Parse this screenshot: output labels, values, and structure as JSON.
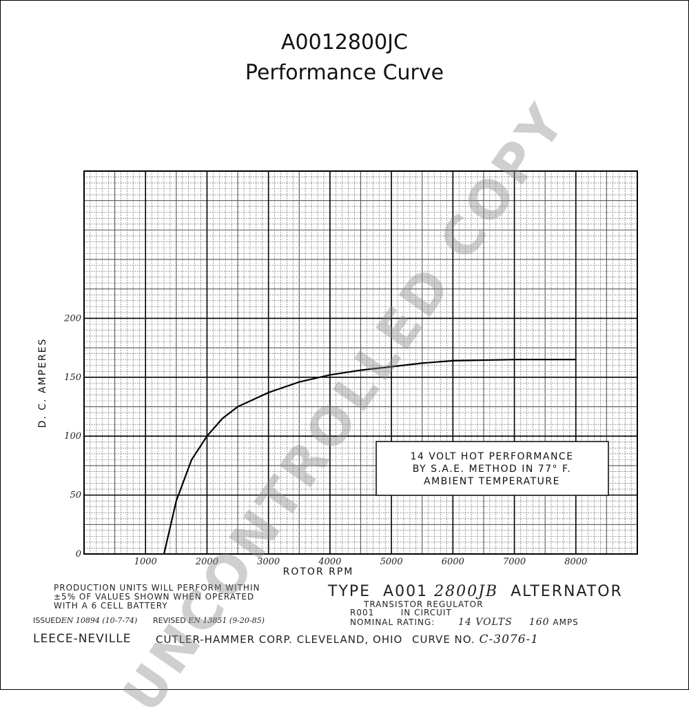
{
  "header": {
    "part_number": "A0012800JC",
    "subtitle": "Performance Curve"
  },
  "chart_data": {
    "type": "line",
    "xlabel": "ROTOR RPM",
    "ylabel": "D. C. AMPERES",
    "xlim": [
      0,
      9000
    ],
    "ylim": [
      0,
      325
    ],
    "x_ticks": [
      "1000",
      "2000",
      "3000",
      "4000",
      "5000",
      "6000",
      "7000",
      "8000"
    ],
    "x_tick_values": [
      1000,
      2000,
      3000,
      4000,
      5000,
      6000,
      7000,
      8000
    ],
    "y_ticks": [
      "0",
      "50",
      "100",
      "150",
      "200"
    ],
    "y_tick_values": [
      0,
      50,
      100,
      150,
      200
    ],
    "grid": true,
    "series": [
      {
        "x": [
          1300,
          1500,
          1750,
          2000,
          2250,
          2500,
          3000,
          3500,
          4000,
          4500,
          5000,
          5500,
          6000,
          7000,
          8000
        ],
        "y": [
          0,
          45,
          80,
          100,
          115,
          125,
          137,
          146,
          152,
          156,
          159,
          162,
          164,
          165,
          165
        ]
      }
    ],
    "annotation": {
      "lines": [
        "14 VOLT HOT PERFORMANCE",
        "BY S.A.E. METHOD IN 77° F.",
        "AMBIENT TEMPERATURE"
      ]
    }
  },
  "footer": {
    "left_note_lines": [
      "PRODUCTION UNITS WILL PERFORM WITHIN",
      "±5% OF VALUES SHOWN WHEN OPERATED",
      "WITH A 6 CELL BATTERY"
    ],
    "issued_label": "ISSUED",
    "issued_value": "EN 10894 (10-7-74)",
    "revised_label": "REVISED",
    "revised_value": "EN 13851 (9-20-85)",
    "type_label": "TYPE",
    "type_model_prefix": "A001",
    "type_model_suffix": "2800JB",
    "type_product": "ALTERNATOR",
    "regulator_line1": "TRANSISTOR REGULATOR",
    "regulator_line2": "R001        IN CIRCUIT",
    "rating_label": "NOMINAL RATING:",
    "rating_volts": "14 VOLTS",
    "rating_amps_value": "160",
    "rating_amps_unit": "AMPS",
    "company_brand": "LEECE-NEVILLE",
    "company_line": "CUTLER-HAMMER CORP. CLEVELAND, OHIO",
    "curve_label": "CURVE NO.",
    "curve_value": "C-3076-1"
  },
  "watermark": "UNCONTROLLED COPY"
}
